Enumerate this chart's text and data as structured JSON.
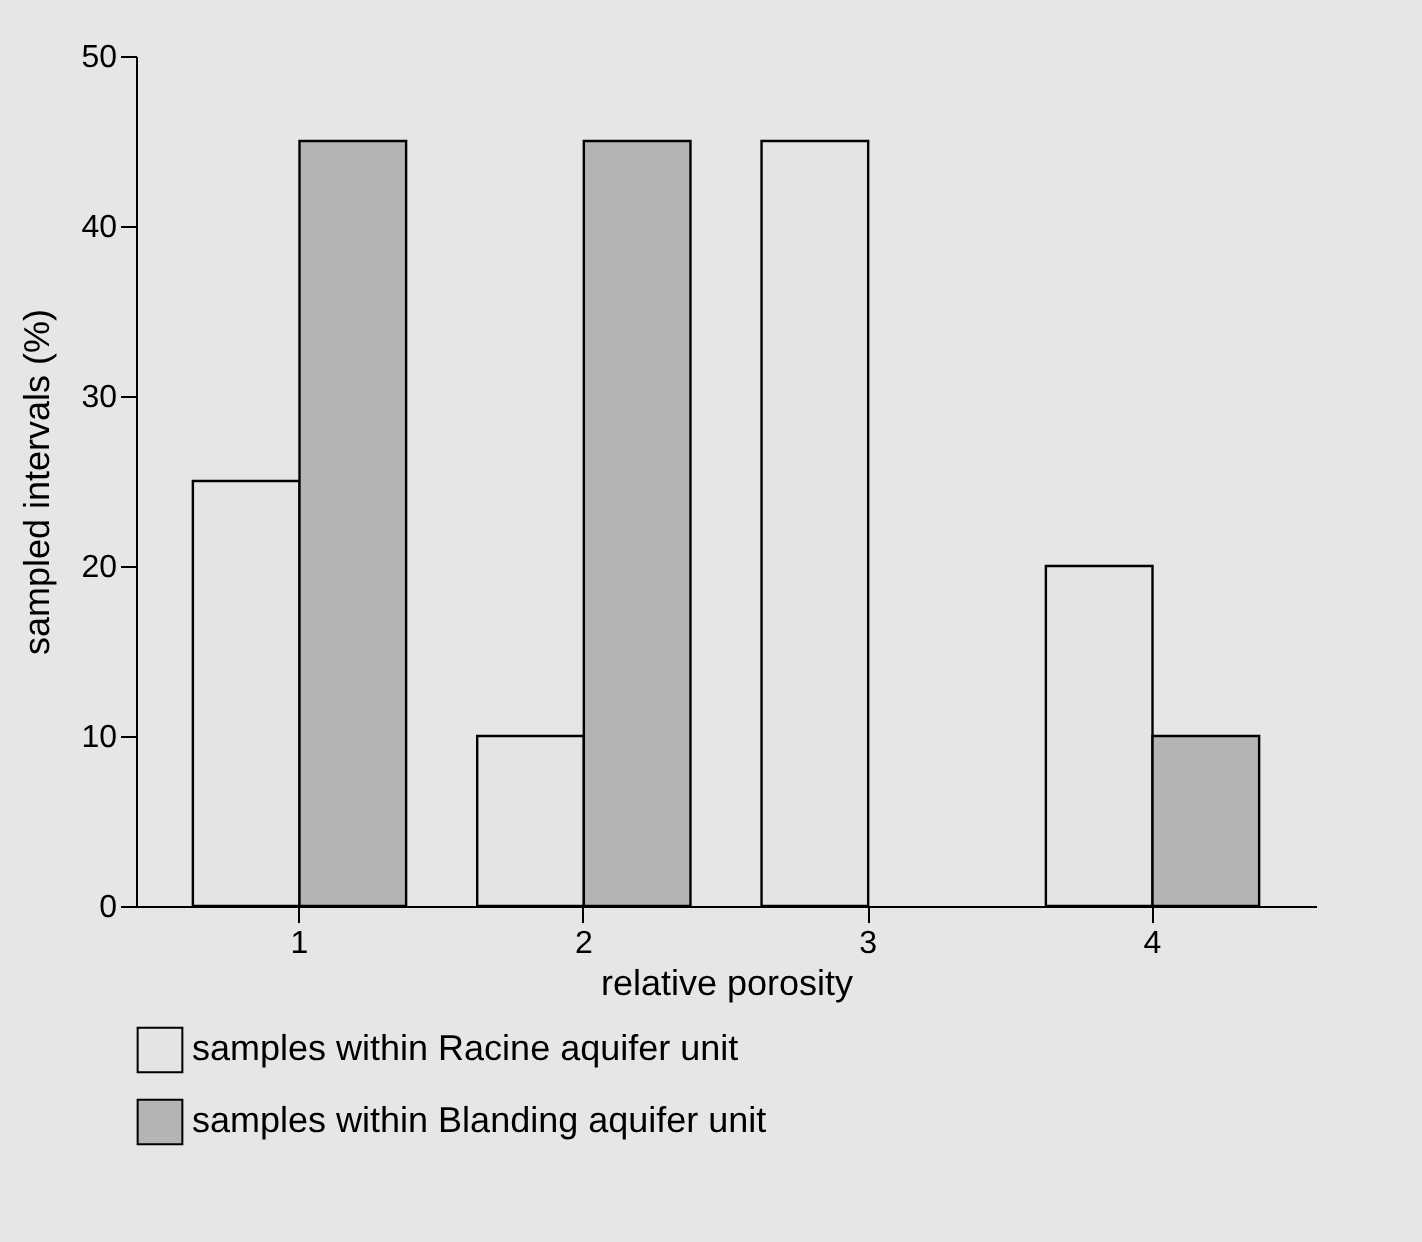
{
  "chart_data": {
    "type": "bar",
    "xlabel": "relative porosity",
    "ylabel": "sampled intervals (%)",
    "categories": [
      "1",
      "2",
      "3",
      "4"
    ],
    "series": [
      {
        "name": "samples within Racine aquifer unit",
        "color": "#e4e4e4",
        "values": [
          25,
          10,
          45,
          20
        ]
      },
      {
        "name": "samples within Blanding aquifer unit",
        "color": "#b4b4b4",
        "values": [
          45,
          45,
          null,
          10
        ]
      }
    ],
    "ylim": [
      0,
      50
    ],
    "yticks": [
      0,
      10,
      20,
      30,
      40,
      50
    ],
    "legend": "bottom",
    "grid": false
  }
}
